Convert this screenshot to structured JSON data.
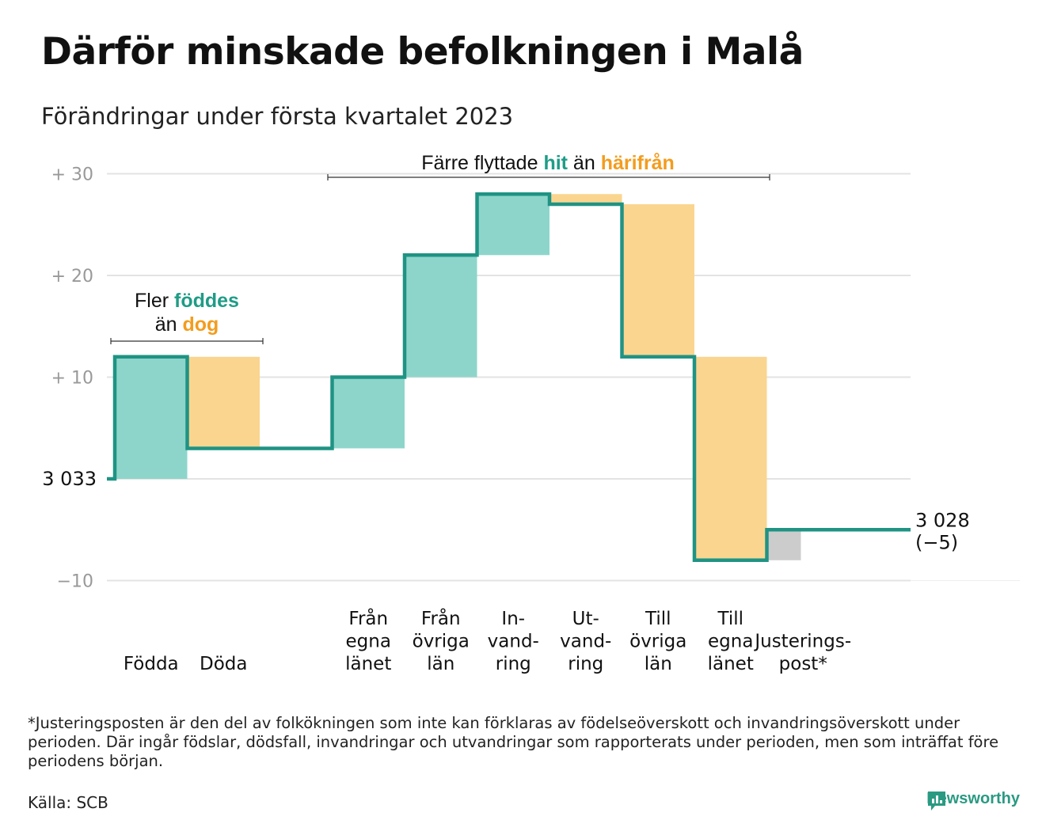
{
  "title": "Därför minskade befolkningen i Malå",
  "subtitle": "Förändringar under första kvartalet 2023",
  "chart_data": {
    "type": "waterfall",
    "start_value": 3033,
    "end_value": 3028,
    "net_change": -5,
    "start_label": "3 033",
    "end_label": "3 028",
    "end_change_label": "(−5)",
    "y_ticks": [
      {
        "value": 30,
        "label": "+ 30"
      },
      {
        "value": 20,
        "label": "+ 20"
      },
      {
        "value": 10,
        "label": "+ 10"
      },
      {
        "value": -10,
        "label": "−10"
      }
    ],
    "ylim": [
      -10,
      30
    ],
    "grid": true,
    "categories": [
      {
        "key": "fodda",
        "lines": [
          "Födda"
        ],
        "value": 12,
        "kind": "in"
      },
      {
        "key": "doda",
        "lines": [
          "Döda"
        ],
        "value": -9,
        "kind": "out"
      },
      {
        "key": "gap",
        "lines": [],
        "value": 0,
        "kind": "none"
      },
      {
        "key": "fran_egna",
        "lines": [
          "Från",
          "egna",
          "länet"
        ],
        "value": 7,
        "kind": "in"
      },
      {
        "key": "fran_ovriga",
        "lines": [
          "Från",
          "övriga",
          "län"
        ],
        "value": 12,
        "kind": "in"
      },
      {
        "key": "invandring",
        "lines": [
          "In-",
          "vand-",
          "ring"
        ],
        "value": 6,
        "kind": "in"
      },
      {
        "key": "utvandring",
        "lines": [
          "Ut-",
          "vand-",
          "ring"
        ],
        "value": -1,
        "kind": "out"
      },
      {
        "key": "till_ovriga",
        "lines": [
          "Till",
          "övriga",
          "län"
        ],
        "value": -15,
        "kind": "out"
      },
      {
        "key": "till_egna",
        "lines": [
          "Till",
          "egna",
          "länet"
        ],
        "value": -20,
        "kind": "out"
      },
      {
        "key": "justering",
        "lines": [
          "Justerings-",
          "post*"
        ],
        "value": 3,
        "kind": "adjust"
      }
    ],
    "annotations": [
      {
        "key": "birth",
        "parts": [
          {
            "text": "Fler ",
            "color": "#111111",
            "bold": false
          },
          {
            "text": "föddes",
            "color": "#1f9c86",
            "bold": true
          },
          {
            "break": true
          },
          {
            "text": "än ",
            "color": "#111111",
            "bold": false
          },
          {
            "text": "dog",
            "color": "#f39c1e",
            "bold": true
          }
        ]
      },
      {
        "key": "migration",
        "parts": [
          {
            "text": "Färre flyttade ",
            "color": "#111111",
            "bold": false
          },
          {
            "text": "hit",
            "color": "#1f9c86",
            "bold": true
          },
          {
            "text": " än ",
            "color": "#111111",
            "bold": false
          },
          {
            "text": "härifrån",
            "color": "#f39c1e",
            "bold": true
          }
        ]
      }
    ]
  },
  "colors": {
    "in": "#8dd5cb",
    "out": "#fad58f",
    "adjust": "#cccccc",
    "line": "#1f9384",
    "grid": "#e3e3e3",
    "tick": "#999999",
    "brand": "#2a9a82"
  },
  "footnote": "*Justeringsposten är den del av folkökningen som inte kan förklaras av födelseöverskott och invandringsöverskott under perioden. Där ingår födslar, dödsfall, invandringar och utvandringar som rapporterats under perioden, men som inträffat före periodens början.",
  "source": "Källa: SCB",
  "brand": {
    "name": "Newsworthy",
    "icon": "newsworthy-logo-icon"
  }
}
